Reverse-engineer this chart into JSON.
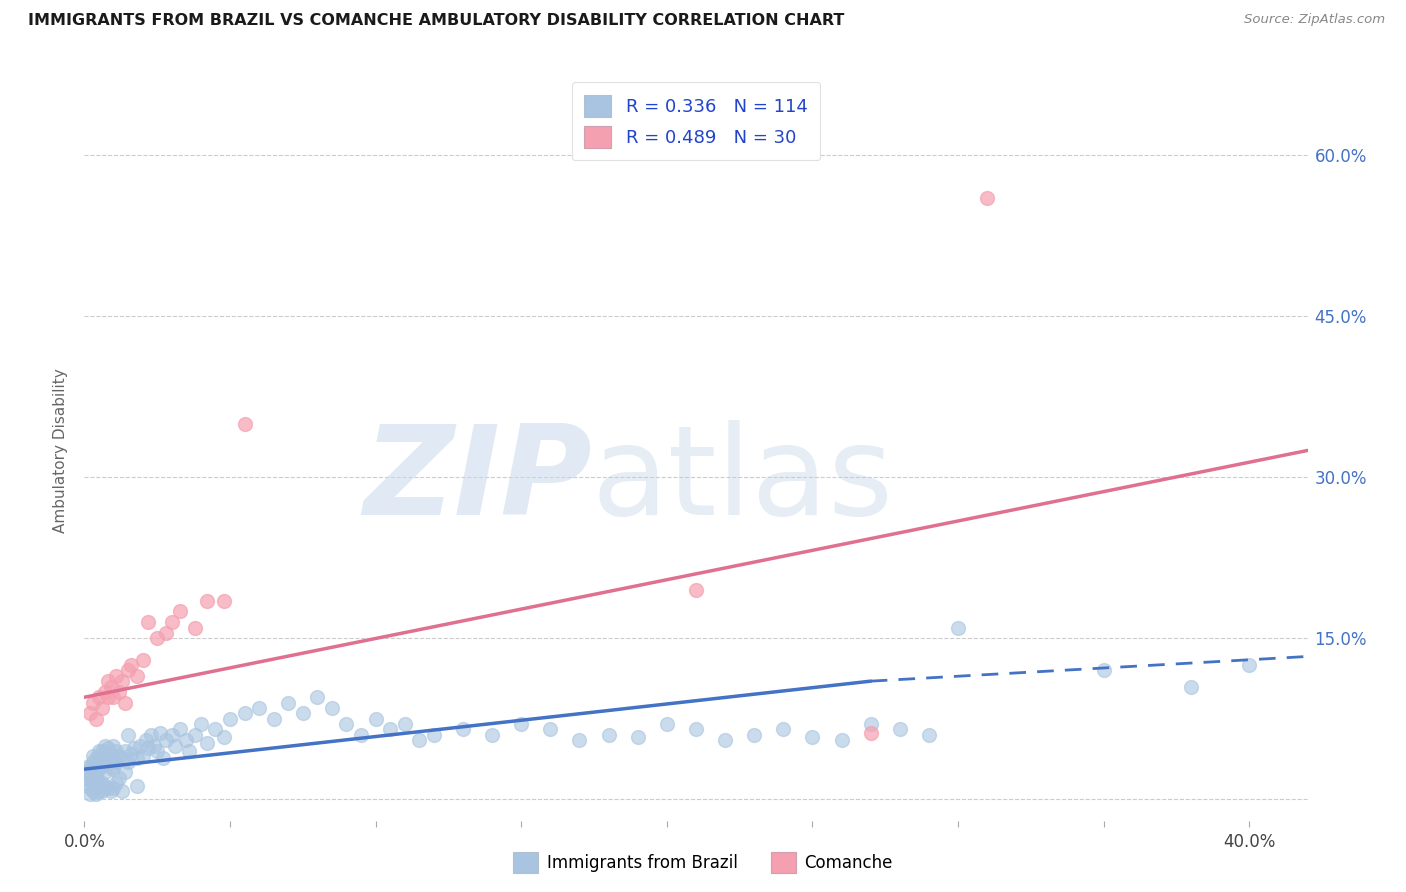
{
  "title": "IMMIGRANTS FROM BRAZIL VS COMANCHE AMBULATORY DISABILITY CORRELATION CHART",
  "source": "Source: ZipAtlas.com",
  "ylabel": "Ambulatory Disability",
  "xlim": [
    0.0,
    0.42
  ],
  "ylim": [
    -0.02,
    0.67
  ],
  "x_ticks": [
    0.0,
    0.05,
    0.1,
    0.15,
    0.2,
    0.25,
    0.3,
    0.35,
    0.4
  ],
  "x_tick_labels": [
    "0.0%",
    "",
    "",
    "",
    "",
    "",
    "",
    "",
    "40.0%"
  ],
  "y_ticks": [
    0.0,
    0.15,
    0.3,
    0.45,
    0.6
  ],
  "y_tick_labels_right": [
    "",
    "15.0%",
    "30.0%",
    "45.0%",
    "60.0%"
  ],
  "brazil_color": "#a8c4e0",
  "comanche_color": "#f4a0b0",
  "brazil_line_color": "#4472c4",
  "comanche_line_color": "#e07090",
  "brazil_R": 0.336,
  "brazil_N": 114,
  "comanche_R": 0.489,
  "comanche_N": 30,
  "legend_label_brazil": "Immigrants from Brazil",
  "legend_label_comanche": "Comanche",
  "brazil_line_start_x": 0.0,
  "brazil_line_start_y": 0.028,
  "brazil_line_solid_end_x": 0.27,
  "brazil_line_solid_end_y": 0.11,
  "brazil_line_dash_end_x": 0.42,
  "brazil_line_dash_end_y": 0.133,
  "comanche_line_start_x": 0.0,
  "comanche_line_start_y": 0.095,
  "comanche_line_end_x": 0.42,
  "comanche_line_end_y": 0.325,
  "brazil_scatter_x": [
    0.001,
    0.001,
    0.001,
    0.002,
    0.002,
    0.002,
    0.002,
    0.002,
    0.003,
    0.003,
    0.003,
    0.003,
    0.003,
    0.004,
    0.004,
    0.004,
    0.004,
    0.004,
    0.004,
    0.005,
    0.005,
    0.005,
    0.005,
    0.005,
    0.005,
    0.005,
    0.006,
    0.006,
    0.006,
    0.006,
    0.006,
    0.007,
    0.007,
    0.007,
    0.007,
    0.008,
    0.008,
    0.008,
    0.008,
    0.009,
    0.009,
    0.009,
    0.01,
    0.01,
    0.01,
    0.01,
    0.011,
    0.011,
    0.011,
    0.012,
    0.012,
    0.013,
    0.013,
    0.014,
    0.014,
    0.015,
    0.015,
    0.016,
    0.017,
    0.018,
    0.018,
    0.019,
    0.02,
    0.021,
    0.022,
    0.023,
    0.024,
    0.025,
    0.026,
    0.027,
    0.028,
    0.03,
    0.031,
    0.033,
    0.035,
    0.036,
    0.038,
    0.04,
    0.042,
    0.045,
    0.048,
    0.05,
    0.055,
    0.06,
    0.065,
    0.07,
    0.075,
    0.08,
    0.085,
    0.09,
    0.095,
    0.1,
    0.105,
    0.11,
    0.115,
    0.12,
    0.13,
    0.14,
    0.15,
    0.16,
    0.17,
    0.18,
    0.19,
    0.2,
    0.21,
    0.22,
    0.23,
    0.24,
    0.25,
    0.26,
    0.27,
    0.28,
    0.29,
    0.3,
    0.35,
    0.38,
    0.4
  ],
  "brazil_scatter_y": [
    0.025,
    0.03,
    0.015,
    0.018,
    0.022,
    0.03,
    0.005,
    0.01,
    0.028,
    0.035,
    0.015,
    0.008,
    0.04,
    0.02,
    0.025,
    0.032,
    0.038,
    0.005,
    0.012,
    0.03,
    0.04,
    0.015,
    0.008,
    0.028,
    0.035,
    0.045,
    0.032,
    0.038,
    0.015,
    0.045,
    0.008,
    0.025,
    0.038,
    0.012,
    0.05,
    0.035,
    0.042,
    0.01,
    0.048,
    0.03,
    0.042,
    0.008,
    0.028,
    0.038,
    0.05,
    0.01,
    0.035,
    0.045,
    0.015,
    0.04,
    0.02,
    0.038,
    0.008,
    0.045,
    0.025,
    0.035,
    0.06,
    0.042,
    0.048,
    0.038,
    0.012,
    0.05,
    0.04,
    0.055,
    0.048,
    0.06,
    0.05,
    0.045,
    0.062,
    0.038,
    0.055,
    0.06,
    0.05,
    0.065,
    0.055,
    0.045,
    0.06,
    0.07,
    0.052,
    0.065,
    0.058,
    0.075,
    0.08,
    0.085,
    0.075,
    0.09,
    0.08,
    0.095,
    0.085,
    0.07,
    0.06,
    0.075,
    0.065,
    0.07,
    0.055,
    0.06,
    0.065,
    0.06,
    0.07,
    0.065,
    0.055,
    0.06,
    0.058,
    0.07,
    0.065,
    0.055,
    0.06,
    0.065,
    0.058,
    0.055,
    0.07,
    0.065,
    0.06,
    0.16,
    0.12,
    0.105,
    0.125
  ],
  "comanche_scatter_x": [
    0.002,
    0.003,
    0.004,
    0.005,
    0.006,
    0.007,
    0.008,
    0.008,
    0.009,
    0.01,
    0.011,
    0.012,
    0.013,
    0.014,
    0.015,
    0.016,
    0.018,
    0.02,
    0.022,
    0.025,
    0.028,
    0.03,
    0.033,
    0.038,
    0.042,
    0.048,
    0.055,
    0.21,
    0.27,
    0.31
  ],
  "comanche_scatter_y": [
    0.08,
    0.09,
    0.075,
    0.095,
    0.085,
    0.1,
    0.095,
    0.11,
    0.105,
    0.095,
    0.115,
    0.1,
    0.11,
    0.09,
    0.12,
    0.125,
    0.115,
    0.13,
    0.165,
    0.15,
    0.155,
    0.165,
    0.175,
    0.16,
    0.185,
    0.185,
    0.35,
    0.195,
    0.062,
    0.56
  ]
}
